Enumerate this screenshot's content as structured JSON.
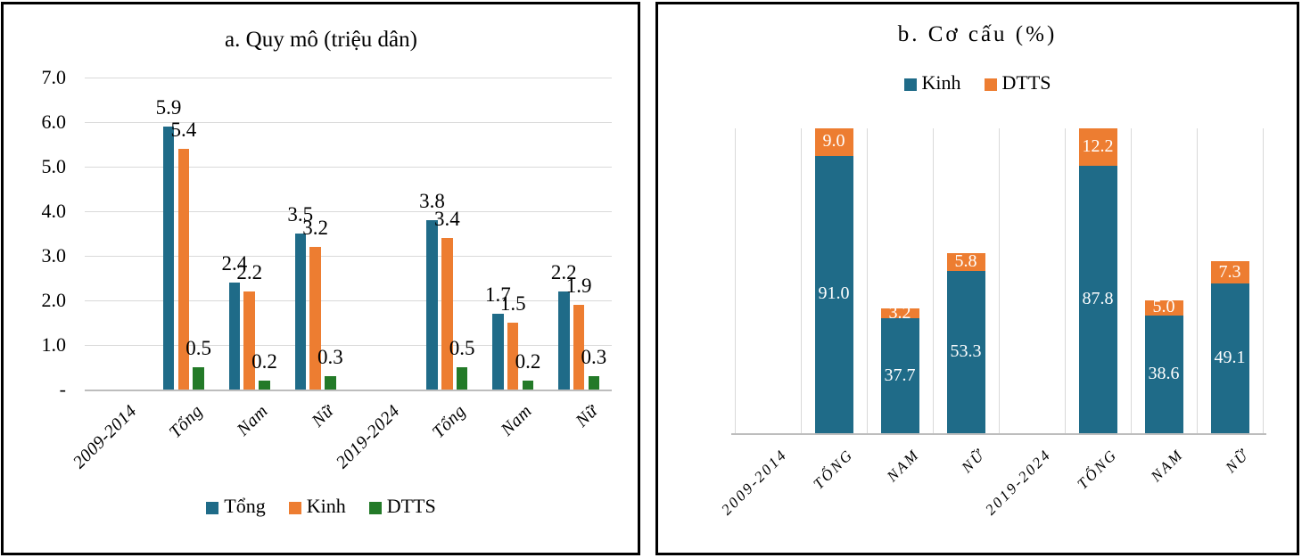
{
  "chart_data": [
    {
      "type": "bar",
      "title": "a. Quy mô (triệu dân)",
      "categories": [
        "2009-2014",
        "Tổng",
        "Nam",
        "Nữ",
        "2019-2024",
        "Tổng",
        "Nam",
        "Nữ"
      ],
      "series": [
        {
          "name": "Tổng",
          "color": "#1F6B88",
          "values": [
            null,
            5.9,
            2.4,
            3.5,
            null,
            3.8,
            1.7,
            2.2
          ],
          "labels": [
            "",
            "5.9",
            "2.4",
            "3.5",
            "",
            "3.8",
            "1.7",
            "2.2"
          ]
        },
        {
          "name": "Kinh",
          "color": "#ED7D31",
          "values": [
            null,
            5.4,
            2.2,
            3.2,
            null,
            3.4,
            1.5,
            1.9
          ],
          "labels": [
            "",
            "5.4",
            "2.2",
            "3.2",
            "",
            "3.4",
            "1.5",
            "1.9"
          ]
        },
        {
          "name": "DTTS",
          "color": "#237A28",
          "values": [
            null,
            0.5,
            0.2,
            0.3,
            null,
            0.5,
            0.2,
            0.3
          ],
          "labels": [
            "",
            "0.5",
            "0.2",
            "0.3",
            "",
            "0.5",
            "0.2",
            "0.3"
          ]
        }
      ],
      "y_ticks": [
        "7.0",
        "6.0",
        "5.0",
        "4.0",
        "3.0",
        "2.0",
        "1.0",
        "-"
      ],
      "ylim": [
        0,
        7
      ],
      "grid": "horizontal",
      "legend_position": "bottom"
    },
    {
      "type": "stacked-bar",
      "title": "b. Cơ cấu (%)",
      "categories": [
        "2009-2014",
        "TỔNG",
        "NAM",
        "NỮ",
        "2019-2024",
        "TỔNG",
        "NAM",
        "NỮ"
      ],
      "series": [
        {
          "name": "Kinh",
          "color": "#1F6B88",
          "values": [
            null,
            91.0,
            37.7,
            53.3,
            null,
            87.8,
            38.6,
            49.1
          ],
          "labels": [
            "",
            "91.0",
            "37.7",
            "53.3",
            "",
            "87.8",
            "38.6",
            "49.1"
          ]
        },
        {
          "name": "DTTS",
          "color": "#ED7D31",
          "values": [
            null,
            9.0,
            3.2,
            5.8,
            null,
            12.2,
            5.0,
            7.3
          ],
          "labels": [
            "",
            "9.0",
            "3.2",
            "5.8",
            "",
            "12.2",
            "5.0",
            "7.3"
          ]
        }
      ],
      "ylim": [
        0,
        100
      ],
      "grid": "vertical",
      "legend_position": "top"
    }
  ],
  "colors": {
    "tong_blue": "#1F6B88",
    "kinh_orange": "#ED7D31",
    "dtts_green": "#237A28",
    "gridline": "#D9D9D9",
    "axisline": "#BDBDBD",
    "panel_border": "#000000"
  }
}
